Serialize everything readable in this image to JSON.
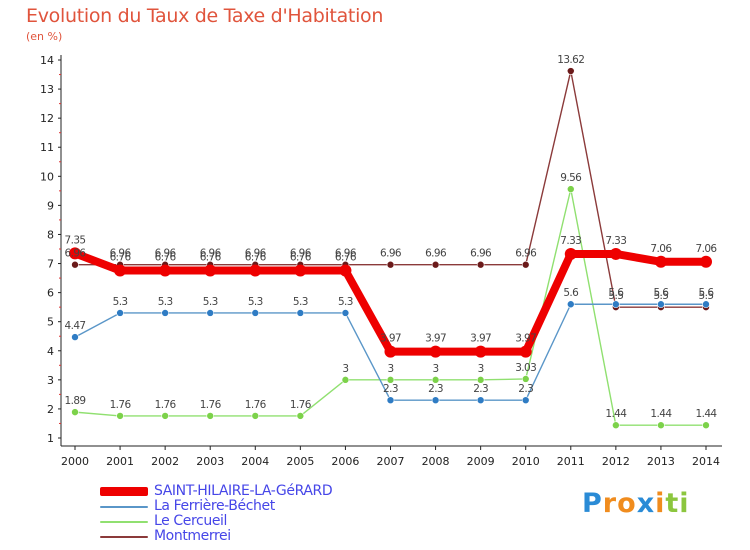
{
  "title": "Evolution du Taux de Taxe d'Habitation",
  "subtitle": "(en %)",
  "logo": {
    "letters": [
      "P",
      "r",
      "o",
      "x",
      "i",
      "t",
      "i"
    ],
    "colors": [
      "#2a8bd6",
      "#f08c1e",
      "#f08c1e",
      "#2a8bd6",
      "#f08c1e",
      "#8cc63e",
      "#8cc63e"
    ]
  },
  "chart_data": {
    "type": "line",
    "x": [
      "2000",
      "2001",
      "2002",
      "2003",
      "2004",
      "2005",
      "2006",
      "2007",
      "2008",
      "2009",
      "2010",
      "2011",
      "2012",
      "2013",
      "2014"
    ],
    "ylim": [
      1,
      14
    ],
    "yticks": [
      "1",
      "2",
      "3",
      "4",
      "5",
      "6",
      "7",
      "8",
      "9",
      "10",
      "11",
      "12",
      "13",
      "14"
    ],
    "grid": false,
    "legend_position": "bottom-left",
    "series": [
      {
        "name": "Montmerrei",
        "color": "#8b3a3a",
        "marker": "#6b1a1a",
        "values": [
          6.96,
          6.96,
          6.96,
          6.96,
          6.96,
          6.96,
          6.96,
          6.96,
          6.96,
          6.96,
          6.96,
          13.62,
          5.5,
          5.5,
          5.5
        ],
        "labels": [
          "6.96",
          "6.96",
          "6.96",
          "6.96",
          "6.96",
          "6.96",
          "6.96",
          "6.96",
          "6.96",
          "6.96",
          "6.96",
          "13.62",
          "5.5",
          "5.5",
          "5.5"
        ]
      },
      {
        "name": "Le Cercueil",
        "color": "#90e070",
        "marker": "#7cd24a",
        "values": [
          1.89,
          1.76,
          1.76,
          1.76,
          1.76,
          1.76,
          3,
          3,
          3,
          3,
          3.03,
          9.56,
          1.44,
          1.44,
          1.44
        ],
        "labels": [
          "1.89",
          "1.76",
          "1.76",
          "1.76",
          "1.76",
          "1.76",
          "3",
          "3",
          "3",
          "3",
          "3.03",
          "9.56",
          "1.44",
          "1.44",
          "1.44"
        ]
      },
      {
        "name": "La Ferrière-Béchet",
        "color": "#5a96c8",
        "marker": "#2f7cc4",
        "values": [
          4.47,
          5.3,
          5.3,
          5.3,
          5.3,
          5.3,
          5.3,
          2.3,
          2.3,
          2.3,
          2.3,
          5.6,
          5.6,
          5.6,
          5.6
        ],
        "labels": [
          "4.47",
          "5.3",
          "5.3",
          "5.3",
          "5.3",
          "5.3",
          "5.3",
          "2.3",
          "2.3",
          "2.3",
          "2.3",
          "5.6",
          "5.6",
          "5.6",
          "5.6"
        ]
      },
      {
        "name": "SAINT-HILAIRE-LA-GéRARD",
        "color": "#ee0000",
        "marker": "#ee0000",
        "values": [
          7.35,
          6.76,
          6.76,
          6.76,
          6.76,
          6.76,
          6.76,
          3.97,
          3.97,
          3.97,
          3.97,
          7.33,
          7.33,
          7.06,
          7.06
        ],
        "labels": [
          "7.35",
          "6.76",
          "6.76",
          "6.76",
          "6.76",
          "6.76",
          "6.76",
          "3.97",
          "3.97",
          "3.97",
          "3.97",
          "7.33",
          "7.33",
          "7.06",
          "7.06"
        ]
      }
    ],
    "legend": [
      {
        "name": "SAINT-HILAIRE-LA-GéRARD",
        "color": "#ee0000"
      },
      {
        "name": "La Ferrière-Béchet",
        "color": "#5a96c8"
      },
      {
        "name": "Le Cercueil",
        "color": "#90e070"
      },
      {
        "name": "Montmerrei",
        "color": "#8b3a3a"
      }
    ]
  }
}
